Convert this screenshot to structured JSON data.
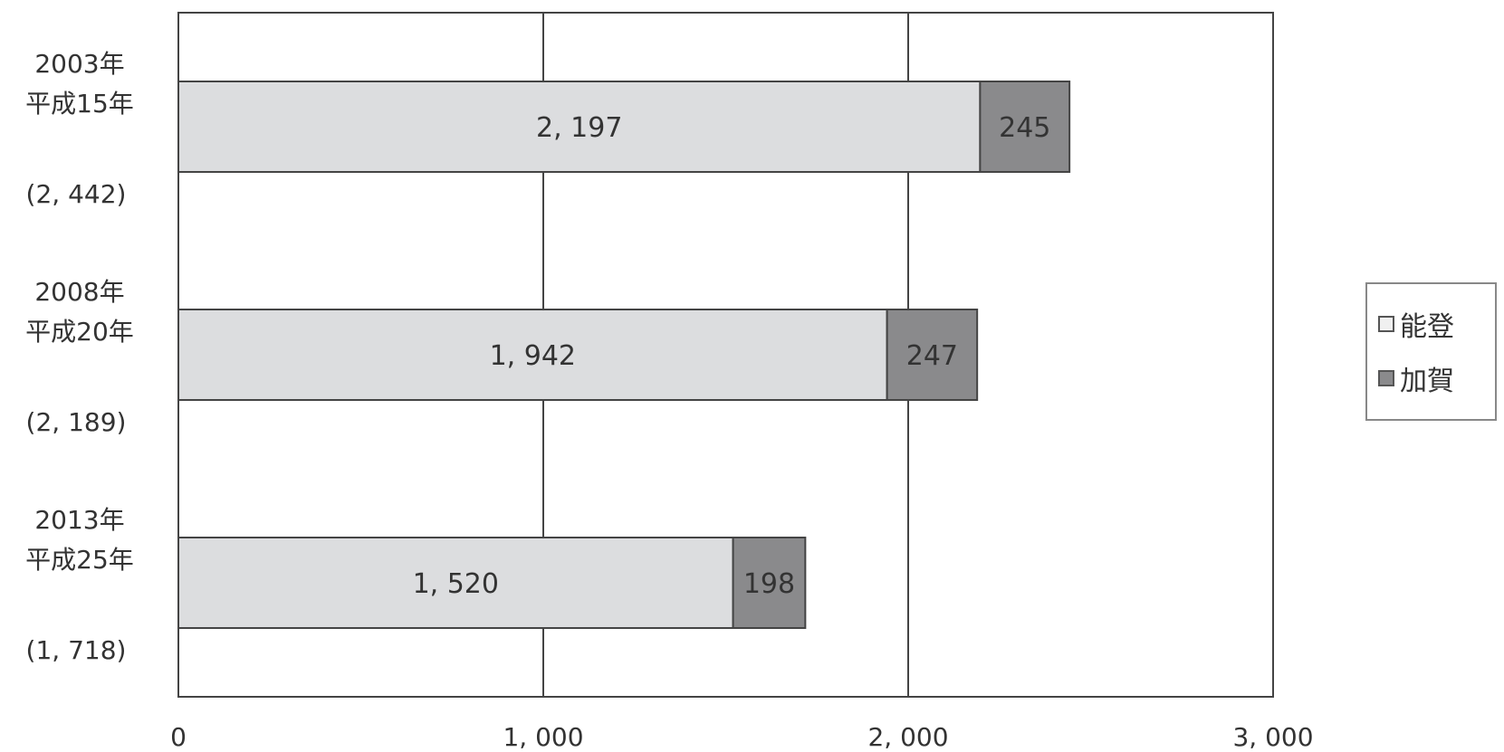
{
  "chart_data": {
    "type": "bar",
    "orientation": "horizontal",
    "stacked": true,
    "categories": [
      {
        "line1": "2003年",
        "line2": "平成15年",
        "total_label": "(2, 442)"
      },
      {
        "line1": "2008年",
        "line2": "平成20年",
        "total_label": "(2, 189)"
      },
      {
        "line1": "2013年",
        "line2": "平成25年",
        "total_label": "(1, 718)"
      }
    ],
    "series": [
      {
        "name": "能登",
        "values": [
          2197,
          1942,
          1520
        ],
        "labels": [
          "2, 197",
          "1, 942",
          "1, 520"
        ],
        "color": "#dcdddf"
      },
      {
        "name": "加賀",
        "values": [
          245,
          247,
          198
        ],
        "labels": [
          "245",
          "247",
          "198"
        ],
        "color": "#8a8a8c"
      }
    ],
    "xlim": [
      0,
      3000
    ],
    "xticks": [
      0,
      1000,
      2000,
      3000
    ],
    "xtick_labels": [
      "0",
      "1, 000",
      "2, 000",
      "3, 000"
    ],
    "grid": "vertical",
    "legend_position": "right",
    "title": "",
    "xlabel": "",
    "ylabel": ""
  }
}
